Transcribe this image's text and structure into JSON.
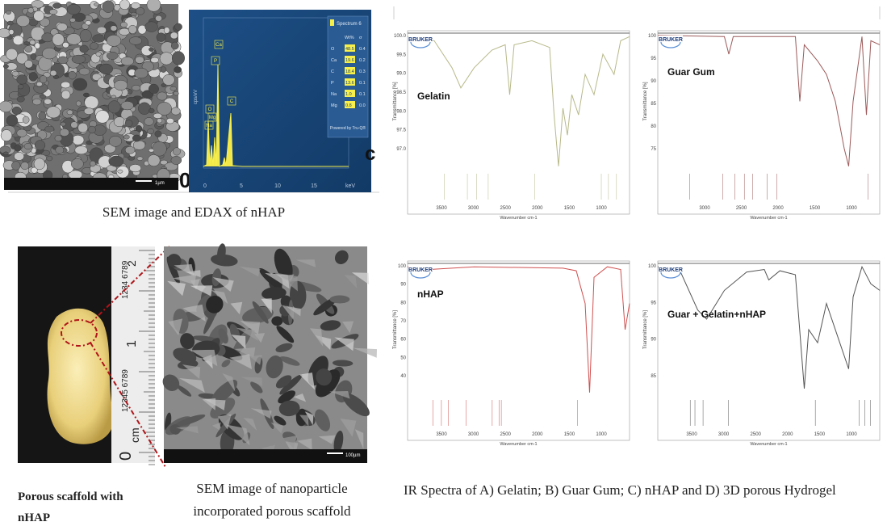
{
  "sem_panel": {
    "scale_label": "1µm",
    "edax": {
      "legend_title": "Spectrum 6",
      "columns": [
        "Wt%",
        "σ"
      ],
      "rows": [
        [
          "O",
          "48.5",
          "0.4"
        ],
        [
          "Ca",
          "19.6",
          "0.2"
        ],
        [
          "C",
          "18.4",
          "0.3"
        ],
        [
          "P",
          "13.6",
          "0.1"
        ],
        [
          "Na",
          "1.0",
          "0.1"
        ],
        [
          "Mg",
          "0.8",
          "0.0"
        ]
      ],
      "footer": "Powered by Tru-Q®",
      "y_label": "cps/eV",
      "peak_labels": [
        "O",
        "Ca",
        "C",
        "P",
        "Mg",
        "Na"
      ],
      "xticks": [
        "0",
        "5",
        "10",
        "15",
        "keV"
      ]
    },
    "fragments": [
      "0",
      "c"
    ],
    "caption": "SEM image and EDAX of nHAP"
  },
  "scaffold_panel": {
    "ruler_labels": [
      "2",
      "1234 6789",
      "1",
      "12345 6789",
      "0",
      "cm"
    ],
    "caption_lines": [
      "Porous scaffold with",
      "nHAP"
    ]
  },
  "sem2_panel": {
    "scale_label": "100µm",
    "caption_lines": [
      "SEM image of nanoparticle",
      "incorporated porous scaffold"
    ]
  },
  "ir_panel": {
    "spectra": [
      {
        "label": "Gelatin",
        "brand": "BRUKER",
        "y_label": "Transmittance [%]",
        "x_label": "Wavenumber cm-1",
        "yticks": [
          "100.0",
          "99.5",
          "99.0",
          "98.5",
          "98.0",
          "97.5",
          "97.0"
        ],
        "xticks": [
          "3500",
          "3000",
          "2500",
          "2000",
          "1500",
          "1000"
        ],
        "color": "#b7b98a"
      },
      {
        "label": "Guar Gum",
        "brand": "BRUKER",
        "y_label": "Transmittance [%]",
        "x_label": "Wavenumber cm-1",
        "yticks": [
          "100",
          "95",
          "90",
          "85",
          "80",
          "75"
        ],
        "xticks": [
          "3000",
          "2500",
          "2000",
          "1500",
          "1000"
        ],
        "color": "#9c5a5a"
      },
      {
        "label": "nHAP",
        "brand": "BRUKER",
        "y_label": "Transmittance [%]",
        "x_label": "Wavenumber cm-1",
        "yticks": [
          "100",
          "90",
          "80",
          "70",
          "60",
          "50",
          "40"
        ],
        "xticks": [
          "3500",
          "3000",
          "2500",
          "2000",
          "1500",
          "1000"
        ],
        "color": "#d05050"
      },
      {
        "label": "Guar + Gelatin+nHAP",
        "brand": "BRUKER",
        "y_label": "Transmittance [%]",
        "x_label": "Wavenumber cm-1",
        "yticks": [
          "100",
          "95",
          "90",
          "85"
        ],
        "xticks": [
          "3500",
          "3000",
          "2500",
          "2000",
          "1500",
          "1000"
        ],
        "color": "#555555"
      }
    ],
    "caption": "IR Spectra of A) Gelatin; B) Guar Gum; C) nHAP and D) 3D porous Hydrogel"
  }
}
